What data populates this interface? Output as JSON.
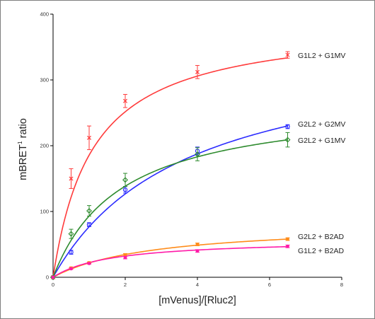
{
  "chart_data": {
    "type": "scatter",
    "title": "",
    "xlabel": "[mVenus]/[Rluc2]",
    "ylabel": {
      "main": "mBRET",
      "superscript": "1",
      "suffix": " ratio"
    },
    "xlim": [
      0,
      8
    ],
    "ylim": [
      0,
      400
    ],
    "xticks": [
      "0",
      "2",
      "4",
      "6",
      "8"
    ],
    "yticks": [
      "0",
      "100",
      "200",
      "300",
      "400"
    ],
    "grid": false,
    "series": [
      {
        "name": "G1L2 + G1MV",
        "color": "#ff3b3b",
        "marker": "x",
        "x": [
          0,
          0.5,
          1,
          2,
          4,
          6.5
        ],
        "y": [
          0,
          150,
          212,
          268,
          312,
          338
        ],
        "err": [
          0,
          15,
          18,
          10,
          10,
          5
        ],
        "fit": {
          "bmax": 390,
          "kd": 1.1
        }
      },
      {
        "name": "G2L2 + G2MV",
        "color": "#2b2bff",
        "marker": "circle",
        "x": [
          0,
          0.5,
          1,
          2,
          4,
          6.5
        ],
        "y": [
          0,
          38,
          80,
          133,
          192,
          229
        ],
        "err": [
          0,
          3,
          3,
          5,
          6,
          3
        ],
        "fit": {
          "bmax": 361,
          "kd": 3.7
        }
      },
      {
        "name": "G2L2 + G1MV",
        "color": "#2e8b2e",
        "marker": "diamond",
        "x": [
          0,
          0.5,
          1,
          2,
          4,
          6.5
        ],
        "y": [
          0,
          66,
          101,
          148,
          187,
          209
        ],
        "err": [
          0,
          7,
          8,
          10,
          10,
          11
        ],
        "fit": {
          "bmax": 270,
          "kd": 1.9
        }
      },
      {
        "name": "G2L2 + B2AD",
        "color": "#ff8c1a",
        "marker": "square",
        "x": [
          0,
          0.5,
          1,
          2,
          4,
          6.5
        ],
        "y": [
          0,
          14,
          22,
          34,
          50,
          58
        ],
        "err": [
          0,
          1,
          1,
          2,
          2,
          2
        ],
        "fit": {
          "bmax": 83,
          "kd": 2.8
        }
      },
      {
        "name": "G1L2 + B2AD",
        "color": "#ff1aa8",
        "marker": "circle-filled",
        "x": [
          0,
          0.5,
          1,
          2,
          4,
          6.5
        ],
        "y": [
          0,
          13,
          21,
          30,
          40,
          47
        ],
        "err": [
          0,
          1,
          1,
          2,
          2,
          2
        ],
        "fit": {
          "bmax": 58,
          "kd": 1.6
        }
      }
    ]
  }
}
